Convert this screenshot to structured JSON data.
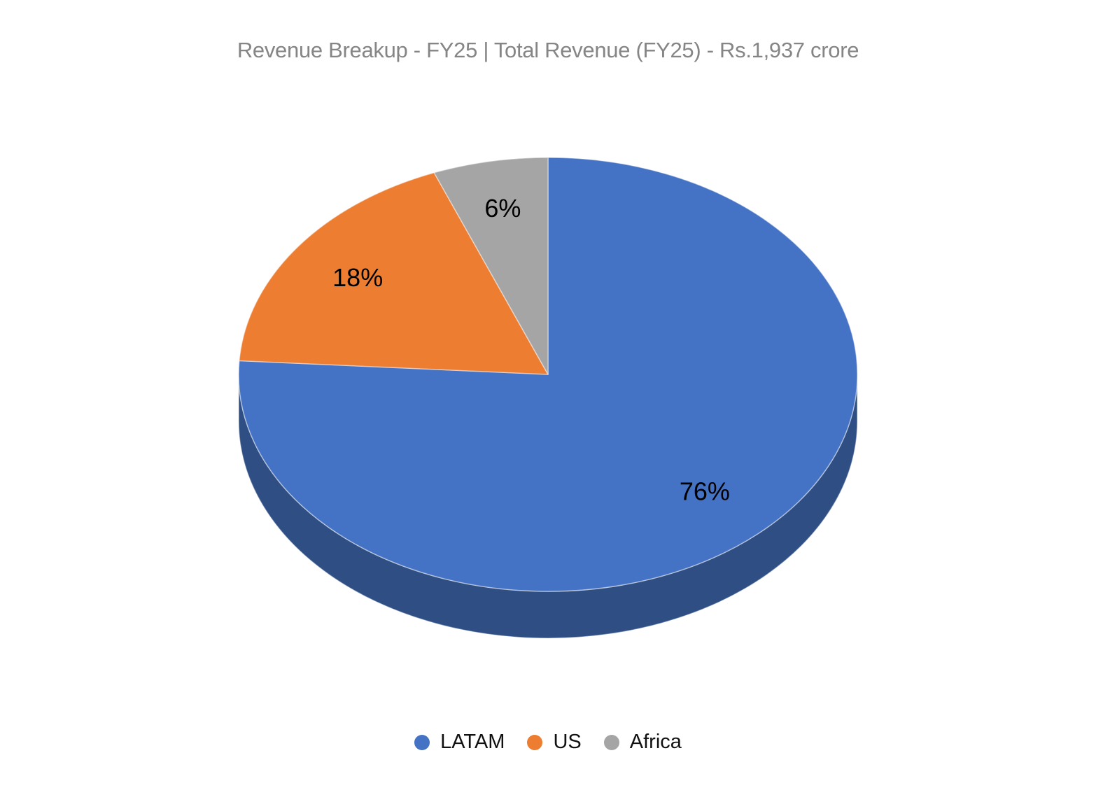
{
  "page": {
    "background": "#FFFFFF"
  },
  "chart_data": {
    "type": "pie",
    "style": "3d",
    "title": "Revenue Breakup - FY25 | Total Revenue (FY25) - Rs.1,937 crore",
    "unit": "%",
    "categories": [
      "LATAM",
      "US",
      "Africa"
    ],
    "values": [
      76,
      18,
      6
    ],
    "slices": [
      {
        "label": "LATAM",
        "value": 76,
        "data_label": "76%",
        "color": "#4472C4",
        "side_color": "#2F4F84"
      },
      {
        "label": "US",
        "value": 18,
        "data_label": "18%",
        "color": "#ED7D31"
      },
      {
        "label": "Africa",
        "value": 6,
        "data_label": "6%",
        "color": "#A5A5A5"
      }
    ],
    "start_angle": "12 o'clock",
    "direction": "clockwise",
    "legend_position": "bottom",
    "title_color": "#858585",
    "data_label_color": "#000000"
  }
}
